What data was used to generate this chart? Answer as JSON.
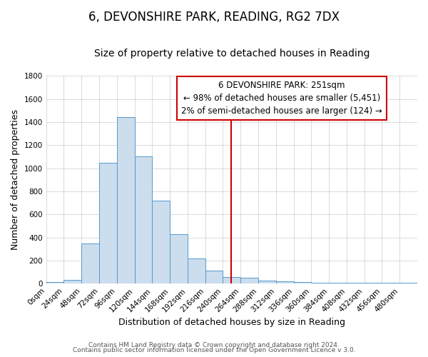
{
  "title": "6, DEVONSHIRE PARK, READING, RG2 7DX",
  "subtitle": "Size of property relative to detached houses in Reading",
  "xlabel": "Distribution of detached houses by size in Reading",
  "ylabel": "Number of detached properties",
  "bar_color": "#ccdded",
  "bar_edge_color": "#5599cc",
  "background_color": "#ffffff",
  "fig_background_color": "#ffffff",
  "grid_color": "#cccccc",
  "bin_edges": [
    0,
    24,
    48,
    72,
    96,
    120,
    144,
    168,
    192,
    216,
    240,
    264,
    288,
    312,
    336,
    360,
    384,
    408,
    432,
    456,
    480,
    504
  ],
  "bar_heights": [
    15,
    30,
    350,
    1050,
    1440,
    1100,
    720,
    430,
    220,
    110,
    60,
    50,
    25,
    20,
    15,
    5,
    5,
    5,
    5,
    5,
    5
  ],
  "red_line_x": 251,
  "annotation_title": "6 DEVONSHIRE PARK: 251sqm",
  "annotation_line1": "← 98% of detached houses are smaller (5,451)",
  "annotation_line2": "2% of semi-detached houses are larger (124) →",
  "annotation_box_color": "#ffffff",
  "annotation_border_color": "#cc0000",
  "red_line_color": "#cc0000",
  "ylim": [
    0,
    1800
  ],
  "xlim": [
    0,
    504
  ],
  "xtick_values": [
    0,
    24,
    48,
    72,
    96,
    120,
    144,
    168,
    192,
    216,
    240,
    264,
    288,
    312,
    336,
    360,
    384,
    408,
    432,
    456,
    480
  ],
  "footer_line1": "Contains HM Land Registry data © Crown copyright and database right 2024.",
  "footer_line2": "Contains public sector information licensed under the Open Government Licence v 3.0.",
  "title_fontsize": 12,
  "subtitle_fontsize": 10,
  "xlabel_fontsize": 9,
  "ylabel_fontsize": 9,
  "tick_fontsize": 7.5,
  "annotation_fontsize": 8.5,
  "footer_fontsize": 6.5
}
